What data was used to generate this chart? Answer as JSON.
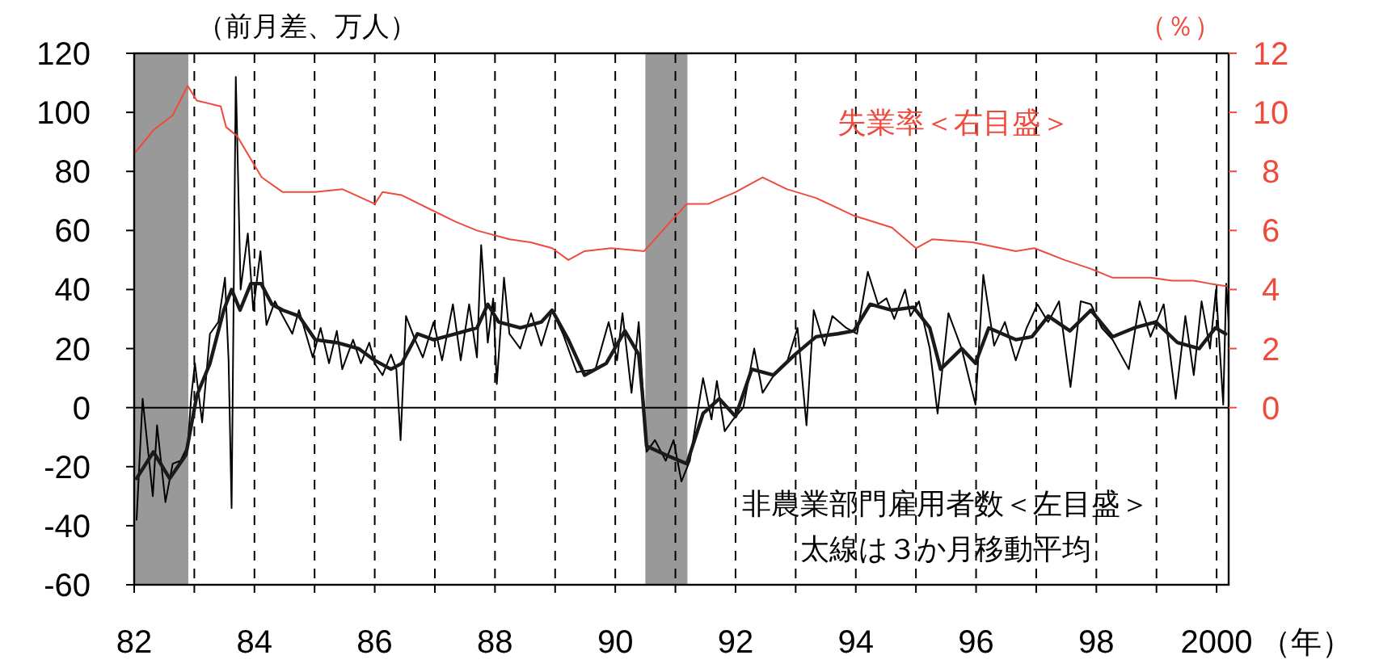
{
  "chart_data": {
    "type": "line",
    "ylabel": "（前月差、万人）",
    "y2label": "（％）",
    "xlabel": "（年）",
    "annotations": [
      "太線は３か月移動平均"
    ],
    "xlim": [
      1982,
      2000.2
    ],
    "ylim": [
      -60,
      120
    ],
    "y2lim": [
      -6,
      12
    ],
    "xticks": [
      {
        "value": 1982,
        "label": "82"
      },
      {
        "value": 1983,
        "label": null
      },
      {
        "value": 1984,
        "label": "84"
      },
      {
        "value": 1985,
        "label": null
      },
      {
        "value": 1986,
        "label": "86"
      },
      {
        "value": 1987,
        "label": null
      },
      {
        "value": 1988,
        "label": "88"
      },
      {
        "value": 1989,
        "label": null
      },
      {
        "value": 1990,
        "label": "90"
      },
      {
        "value": 1991,
        "label": null
      },
      {
        "value": 1992,
        "label": "92"
      },
      {
        "value": 1993,
        "label": null
      },
      {
        "value": 1994,
        "label": "94"
      },
      {
        "value": 1995,
        "label": null
      },
      {
        "value": 1996,
        "label": "96"
      },
      {
        "value": 1997,
        "label": null
      },
      {
        "value": 1998,
        "label": "98"
      },
      {
        "value": 1999,
        "label": null
      },
      {
        "value": 2000,
        "label": "2000"
      }
    ],
    "yticks": [
      -60,
      -40,
      -20,
      0,
      20,
      40,
      60,
      80,
      100,
      120
    ],
    "y2ticks": [
      0,
      2,
      4,
      6,
      8,
      10,
      12
    ],
    "grid": "x",
    "bands": [
      {
        "axis": "x",
        "from": 1982,
        "to": 1982.9,
        "color": "#999999"
      },
      {
        "axis": "x",
        "from": 1990.5,
        "to": 1991.2,
        "color": "#999999"
      }
    ],
    "ref_lines": [
      {
        "axis": "y",
        "value": 0,
        "color": "#000000"
      }
    ],
    "series": [
      {
        "name": "非農業部門雇用者数＜左目盛＞",
        "color": "#000000",
        "x": [
          1982.04,
          1982.14,
          1982.31,
          1982.38,
          1982.52,
          1982.64,
          1982.77,
          1982.89,
          1982.95,
          1983.01,
          1983.13,
          1983.26,
          1983.4,
          1983.51,
          1983.57,
          1983.62,
          1983.69,
          1983.77,
          1983.89,
          1983.98,
          1984.1,
          1984.2,
          1984.34,
          1984.47,
          1984.63,
          1984.74,
          1984.97,
          1985.1,
          1985.24,
          1985.37,
          1985.46,
          1985.64,
          1985.77,
          1985.91,
          1986.0,
          1986.13,
          1986.27,
          1986.36,
          1986.43,
          1986.52,
          1986.67,
          1986.8,
          1986.98,
          1987.12,
          1987.3,
          1987.43,
          1987.57,
          1987.7,
          1987.77,
          1987.88,
          1987.97,
          1988.03,
          1988.15,
          1988.24,
          1988.42,
          1988.6,
          1988.77,
          1988.95,
          1989.13,
          1989.36,
          1989.67,
          1989.89,
          1990.03,
          1990.12,
          1990.27,
          1990.39,
          1990.52,
          1990.66,
          1990.84,
          1990.97,
          1991.1,
          1991.24,
          1991.46,
          1991.6,
          1991.69,
          1991.82,
          1991.96,
          1992.13,
          1992.31,
          1992.45,
          1992.67,
          1992.85,
          1993.03,
          1993.18,
          1993.3,
          1993.48,
          1993.61,
          1993.84,
          1994.02,
          1994.2,
          1994.37,
          1994.51,
          1994.64,
          1994.82,
          1994.91,
          1995.05,
          1995.23,
          1995.36,
          1995.54,
          1995.76,
          1995.99,
          1996.12,
          1996.3,
          1996.48,
          1996.66,
          1996.84,
          1997.02,
          1997.2,
          1997.38,
          1997.57,
          1997.74,
          1997.91,
          1998.09,
          1998.27,
          1998.54,
          1998.72,
          1998.9,
          1999.12,
          1999.32,
          1999.48,
          1999.62,
          1999.75,
          1999.89,
          1999.99,
          2000.11,
          2000.16,
          2000.2
        ],
        "values": [
          -38,
          3,
          -30,
          -6,
          -32,
          -19,
          -18,
          -13,
          4,
          15,
          -5,
          25,
          29,
          44,
          16,
          -34,
          112,
          40,
          59,
          33,
          53,
          28,
          36,
          31,
          25,
          33,
          17,
          27,
          15,
          26,
          13,
          23,
          15,
          22,
          15,
          11,
          18,
          13,
          -11,
          31,
          23,
          17,
          29,
          16,
          35,
          16,
          35,
          17,
          55,
          22,
          37,
          8,
          44,
          25,
          20,
          32,
          21,
          33,
          25,
          12,
          13,
          29,
          16,
          32,
          5,
          29,
          -15,
          -11,
          -18,
          -11,
          -25,
          -18,
          10,
          -4,
          9,
          -8,
          -4,
          0,
          20,
          5,
          12,
          15,
          27,
          -6,
          33,
          21,
          31,
          27,
          25,
          46,
          35,
          37,
          30,
          40,
          31,
          36,
          20,
          -2,
          32,
          20,
          1,
          45,
          21,
          29,
          16,
          27,
          35,
          29,
          36,
          7,
          36,
          35,
          27,
          23,
          13,
          36,
          24,
          35,
          3,
          31,
          11,
          36,
          20,
          40,
          1,
          42,
          29
        ]
      },
      {
        "color": "#1a1a1a",
        "x": [
          1982.04,
          1982.32,
          1982.59,
          1982.86,
          1983.04,
          1983.26,
          1983.49,
          1983.62,
          1983.76,
          1983.94,
          1984.11,
          1984.29,
          1984.47,
          1984.74,
          1985.01,
          1985.37,
          1985.73,
          1986.0,
          1986.27,
          1986.45,
          1986.71,
          1986.98,
          1987.34,
          1987.7,
          1987.88,
          1988.06,
          1988.42,
          1988.77,
          1988.95,
          1989.22,
          1989.49,
          1989.85,
          1990.16,
          1990.39,
          1990.45,
          1990.52,
          1990.84,
          1991.19,
          1991.46,
          1991.73,
          1992.0,
          1992.27,
          1992.63,
          1992.99,
          1993.34,
          1993.7,
          1993.97,
          1994.24,
          1994.6,
          1994.96,
          1995.23,
          1995.41,
          1995.76,
          1995.99,
          1996.21,
          1996.66,
          1996.93,
          1997.2,
          1997.56,
          1997.91,
          1998.27,
          1998.63,
          1998.99,
          1999.35,
          1999.71,
          1999.98,
          2000.15
        ],
        "values": [
          -24,
          -15,
          -24,
          -16,
          4,
          15,
          33,
          40,
          33,
          42,
          42,
          35,
          33,
          31,
          23,
          22,
          20,
          16,
          13,
          15,
          25,
          23,
          25,
          27,
          35,
          29,
          27,
          29,
          33,
          23,
          11,
          15,
          26,
          18,
          5,
          -13,
          -16,
          -19,
          -2,
          3,
          -3,
          13,
          11,
          18,
          24,
          25,
          26,
          35,
          33,
          34,
          27,
          13,
          20,
          15,
          27,
          23,
          24,
          31,
          26,
          33,
          24,
          27,
          29,
          22,
          20,
          27,
          25
        ]
      },
      {
        "name": "失業率＜右目盛＞",
        "color": "#f04a3c",
        "axis": "y2",
        "x": [
          1982.0,
          1982.32,
          1982.64,
          1982.89,
          1983.04,
          1983.44,
          1983.53,
          1983.71,
          1984.12,
          1984.47,
          1985.01,
          1985.46,
          1986.0,
          1986.13,
          1986.44,
          1986.94,
          1987.34,
          1987.7,
          1988.24,
          1988.59,
          1988.95,
          1989.22,
          1989.49,
          1989.93,
          1990.48,
          1990.92,
          1991.19,
          1991.55,
          1992.0,
          1992.45,
          1992.85,
          1993.34,
          1993.97,
          1994.6,
          1995.0,
          1995.27,
          1995.94,
          1996.66,
          1996.97,
          1997.47,
          1997.91,
          1998.27,
          1998.9,
          1999.26,
          1999.62,
          1999.89,
          2000.2
        ],
        "values": [
          8.6,
          9.4,
          9.9,
          10.9,
          10.4,
          10.2,
          9.5,
          9.2,
          7.8,
          7.3,
          7.3,
          7.4,
          6.9,
          7.3,
          7.2,
          6.7,
          6.3,
          6.0,
          5.7,
          5.6,
          5.4,
          5.0,
          5.3,
          5.4,
          5.3,
          6.3,
          6.9,
          6.9,
          7.3,
          7.8,
          7.4,
          7.1,
          6.5,
          6.1,
          5.4,
          5.7,
          5.6,
          5.3,
          5.4,
          5.0,
          4.7,
          4.4,
          4.4,
          4.3,
          4.3,
          4.2,
          4.1
        ]
      }
    ]
  }
}
